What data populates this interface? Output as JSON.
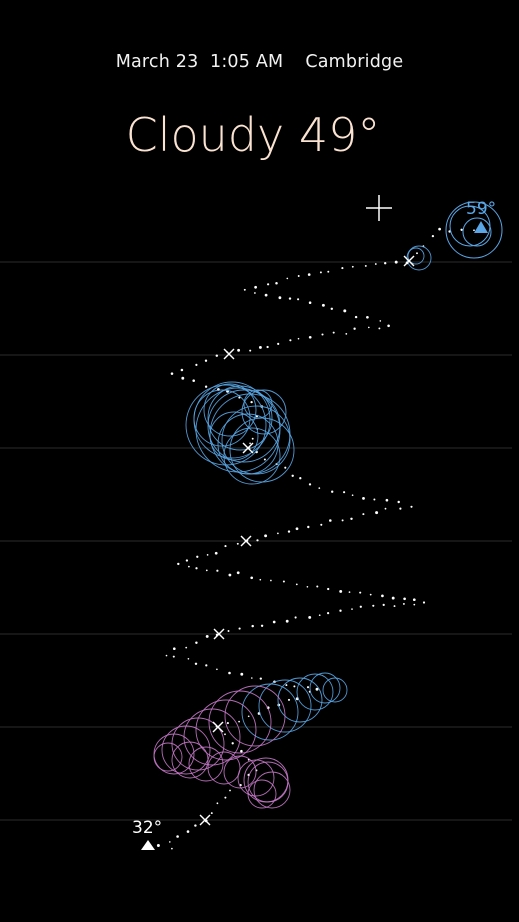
{
  "header": {
    "date": "March 23",
    "time": "1:05 AM",
    "location": "Cambridge"
  },
  "headline": {
    "condition": "Cloudy",
    "temperature": "49°",
    "text": "Cloudy 49°"
  },
  "temperature_labels": {
    "high": "59°",
    "low": "32°"
  },
  "colors": {
    "background": "#000000",
    "headline": "#fbe3d2",
    "rain": "#5aa6e6",
    "snow_mix": "#c679c9",
    "grid": "#2b2b2b",
    "marker": "#ffffff"
  },
  "icons": {
    "current": "crosshair-plus-icon",
    "hour_marker": "x-marker-icon",
    "high": "triangle-up-icon",
    "low": "triangle-up-icon"
  }
}
